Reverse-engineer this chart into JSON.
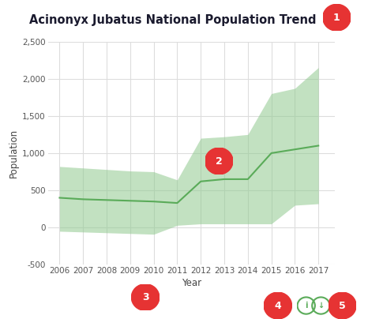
{
  "title": "Acinonyx Jubatus National Population Trend",
  "xlabel": "Year",
  "ylabel": "Population",
  "years": [
    2006,
    2007,
    2008,
    2009,
    2010,
    2011,
    2012,
    2013,
    2014,
    2015,
    2016,
    2017
  ],
  "mean_line": [
    400,
    380,
    370,
    360,
    350,
    330,
    620,
    650,
    650,
    1000,
    1050,
    1100
  ],
  "upper_band": [
    820,
    800,
    780,
    760,
    750,
    640,
    1200,
    1220,
    1250,
    1800,
    1870,
    2150
  ],
  "lower_band": [
    -50,
    -60,
    -70,
    -80,
    -90,
    30,
    50,
    50,
    50,
    50,
    300,
    320
  ],
  "band_color": "#90c98f",
  "band_alpha": 0.55,
  "line_color": "#5aab59",
  "line_width": 1.5,
  "bg_color": "#ffffff",
  "grid_color": "#dddddd",
  "ylim": [
    -500,
    2500
  ],
  "xlim_start": 2005.5,
  "xlim_end": 2017.7,
  "yticks": [
    -500,
    0,
    500,
    1000,
    1500,
    2000,
    2500
  ],
  "ytick_labels": [
    "-500",
    "0",
    "500",
    "1,000",
    "1,500",
    "2,000",
    "2,500"
  ],
  "xticks": [
    2006,
    2007,
    2008,
    2009,
    2010,
    2011,
    2012,
    2013,
    2014,
    2015,
    2016,
    2017
  ],
  "title_color": "#1a1a2e",
  "title_fontsize": 10.5,
  "axis_fontsize": 8.5,
  "tick_fontsize": 7.5,
  "badge_color": "#e63333",
  "icon_color": "#5aab59"
}
